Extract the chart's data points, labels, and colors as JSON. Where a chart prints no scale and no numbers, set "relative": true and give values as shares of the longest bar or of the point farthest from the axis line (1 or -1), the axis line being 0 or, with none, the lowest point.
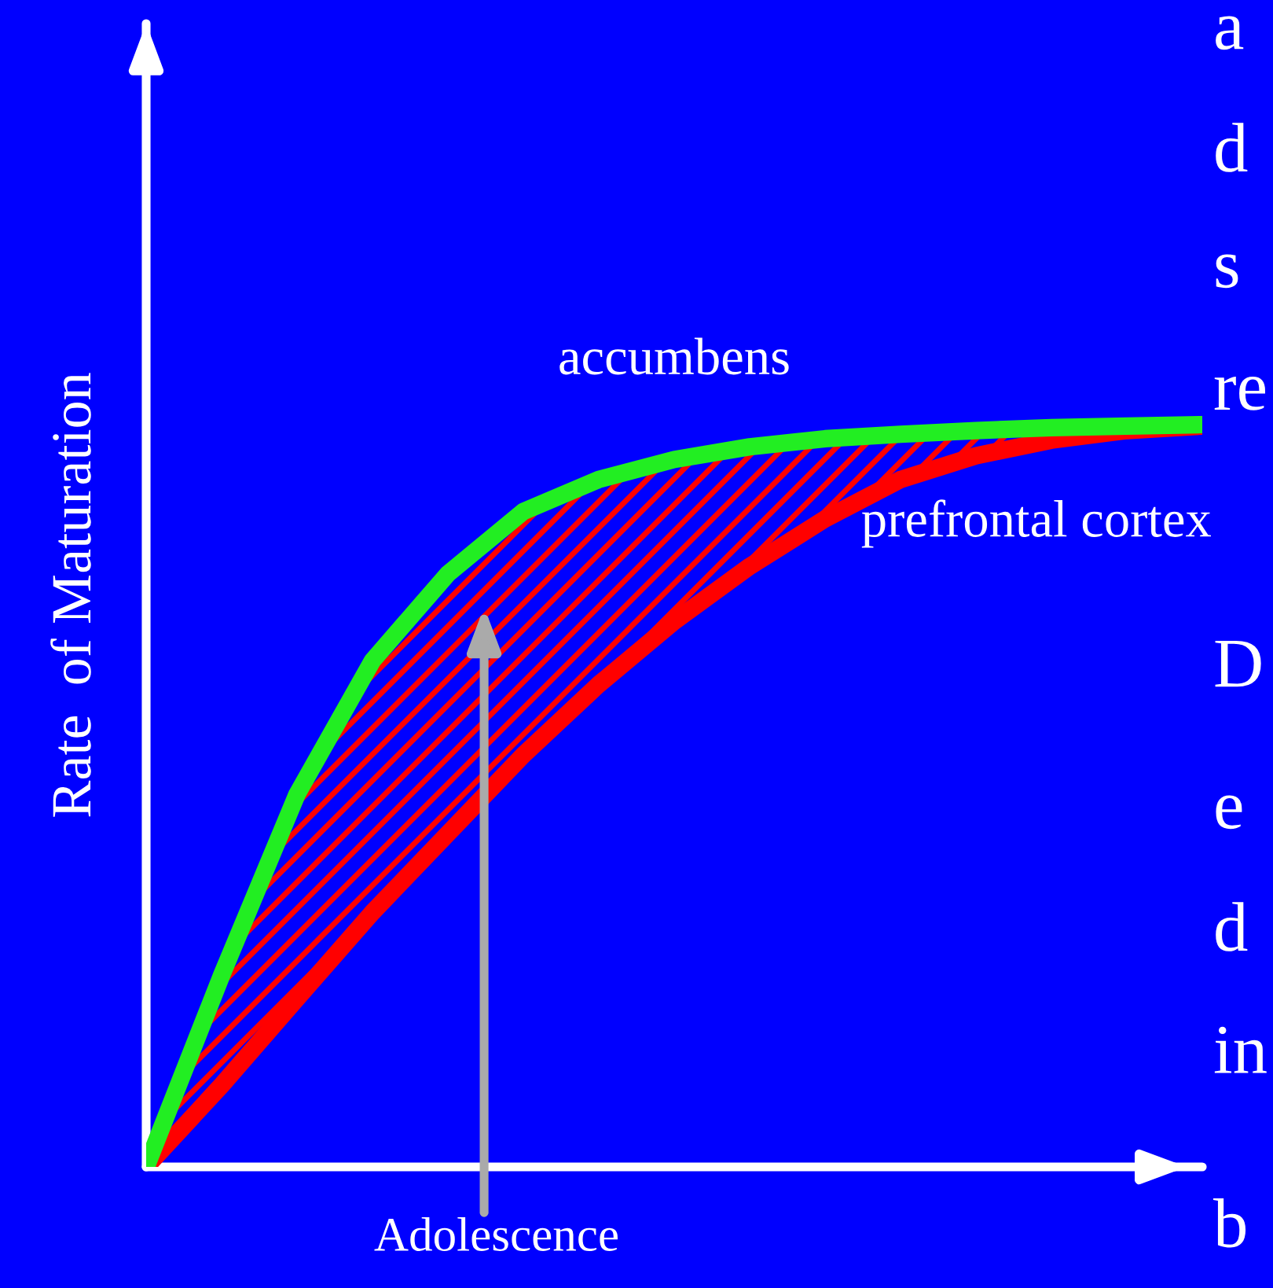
{
  "chart_data": {
    "type": "line",
    "relative": true,
    "ylabel": "Rate  of Maturation",
    "categories": [
      null,
      null,
      null,
      null,
      null,
      null,
      null,
      null,
      null,
      null,
      null,
      null,
      null,
      null,
      null
    ],
    "series": [
      {
        "name": "accumbens",
        "color": "#22ee22",
        "values": [
          0,
          0.258,
          0.502,
          0.682,
          0.799,
          0.883,
          0.926,
          0.953,
          0.97,
          0.981,
          0.987,
          0.992,
          0.996,
          0.998,
          1
        ]
      },
      {
        "name": "prefrontal cortex",
        "color": "#ff0000",
        "values": [
          0,
          0.11,
          0.227,
          0.343,
          0.449,
          0.555,
          0.65,
          0.735,
          0.809,
          0.873,
          0.926,
          0.958,
          0.979,
          0.992,
          0.998
        ],
        "lower": [
          0,
          0.11,
          0.227,
          0.343,
          0.449,
          0.555,
          0.65,
          0.735,
          0.809,
          0.873,
          0.926,
          0.958,
          0.979,
          0.992,
          0.998
        ],
        "upper": [
          0,
          0.258,
          0.502,
          0.682,
          0.799,
          0.883,
          0.926,
          0.953,
          0.97,
          0.981,
          0.987,
          0.992,
          0.996,
          0.998,
          1
        ]
      }
    ],
    "annotations": [
      "Adolescence",
      "a",
      "d",
      "s",
      "re",
      "D",
      "e",
      "d",
      "in",
      "b"
    ],
    "legend": false
  }
}
